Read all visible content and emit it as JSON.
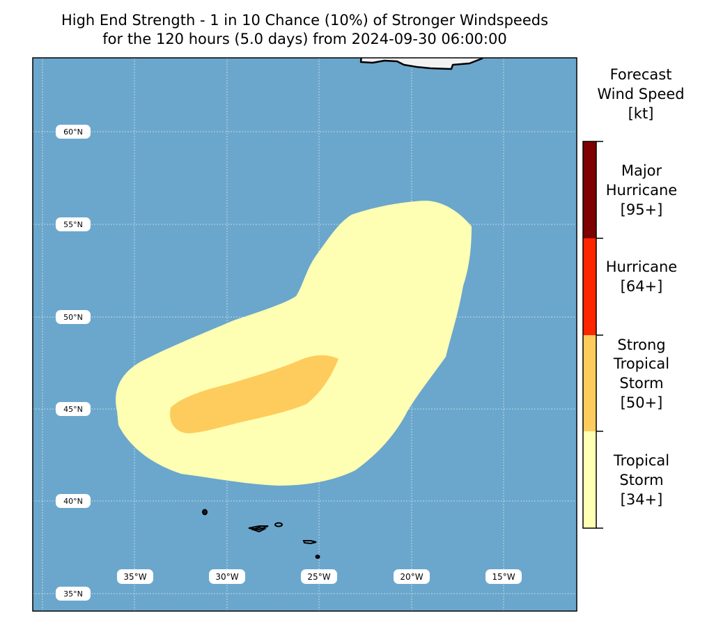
{
  "title": {
    "line1": "High End Strength - 1 in 10 Chance (10%) of Stronger Windspeeds",
    "line2": "for the 120 hours (5.0 days) from 2024-09-30 06:00:00"
  },
  "map": {
    "ocean_color": "#6ba7cc",
    "land_color": "#f2f2f2",
    "lat_labels": [
      "60°N",
      "55°N",
      "50°N",
      "45°N",
      "40°N",
      "35°N"
    ],
    "lon_labels": [
      "35°W",
      "30°W",
      "25°W",
      "20°W",
      "15°W"
    ],
    "wind_regions": [
      {
        "category": "Tropical Storm",
        "color": "#ffffb3"
      },
      {
        "category": "Strong Tropical Storm",
        "color": "#fecc5c"
      }
    ]
  },
  "colorbar": {
    "title_lines": [
      "Forecast",
      "Wind Speed",
      "[kt]"
    ],
    "categories": [
      {
        "lines": [
          "Major",
          "Hurricane",
          "[95+]"
        ],
        "color": "#7f0000"
      },
      {
        "lines": [
          "Hurricane",
          "[64+]"
        ],
        "color": "#ff2600"
      },
      {
        "lines": [
          "Strong",
          "Tropical",
          "Storm",
          "[50+]"
        ],
        "color": "#fecc5c"
      },
      {
        "lines": [
          "Tropical",
          "Storm",
          "[34+]"
        ],
        "color": "#ffffb3"
      }
    ]
  }
}
